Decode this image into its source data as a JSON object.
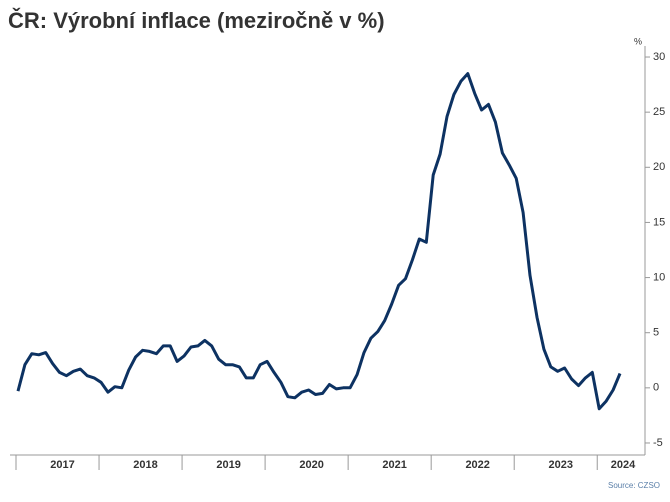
{
  "chart_data": {
    "type": "line",
    "title": "ČR: Výrobní inflace (meziročně v %)",
    "y_label": "%",
    "source": "Source: CZSO",
    "categories": [
      null,
      null,
      null,
      null,
      null,
      null,
      "2017",
      null,
      null,
      null,
      null,
      null,
      null,
      null,
      null,
      null,
      null,
      null,
      "2018",
      null,
      null,
      null,
      null,
      null,
      null,
      null,
      null,
      null,
      null,
      null,
      "2019",
      null,
      null,
      null,
      null,
      null,
      null,
      null,
      null,
      null,
      null,
      null,
      "2020",
      null,
      null,
      null,
      null,
      null,
      null,
      null,
      null,
      null,
      null,
      null,
      "2021",
      null,
      null,
      null,
      null,
      null,
      null,
      null,
      null,
      null,
      null,
      null,
      "2022",
      null,
      null,
      null,
      null,
      null,
      null,
      null,
      null,
      null,
      null,
      null,
      "2023",
      null,
      null,
      null,
      null,
      null,
      null,
      null,
      null,
      "2024"
    ],
    "series": [
      {
        "name": "Výrobní inflace",
        "color": "#0d3262",
        "values": [
          -0.3,
          2.1,
          3.1,
          3.0,
          3.2,
          2.2,
          1.4,
          1.1,
          1.5,
          1.7,
          1.1,
          0.9,
          0.5,
          -0.4,
          0.1,
          0.0,
          1.6,
          2.8,
          3.4,
          3.3,
          3.1,
          3.8,
          3.8,
          2.4,
          2.9,
          3.7,
          3.8,
          4.3,
          3.8,
          2.6,
          2.1,
          2.1,
          1.9,
          0.9,
          0.9,
          2.1,
          2.4,
          1.4,
          0.5,
          -0.8,
          -0.9,
          -0.4,
          -0.2,
          -0.6,
          -0.5,
          0.3,
          -0.1,
          0.0,
          0.0,
          1.2,
          3.2,
          4.5,
          5.1,
          6.1,
          7.6,
          9.3,
          9.9,
          11.6,
          13.5,
          13.2,
          19.3,
          21.2,
          24.6,
          26.6,
          27.8,
          28.5,
          26.7,
          25.2,
          25.7,
          24.1,
          21.3,
          20.2,
          19.0,
          15.9,
          10.2,
          6.4,
          3.5,
          1.9,
          1.5,
          1.8,
          0.8,
          0.2,
          0.9,
          1.4,
          -1.9,
          -1.2,
          -0.2,
          1.3
        ]
      }
    ],
    "ylim": [
      -6,
      31
    ],
    "yticks": [
      -5,
      0,
      5,
      10,
      15,
      20,
      25,
      30
    ]
  }
}
